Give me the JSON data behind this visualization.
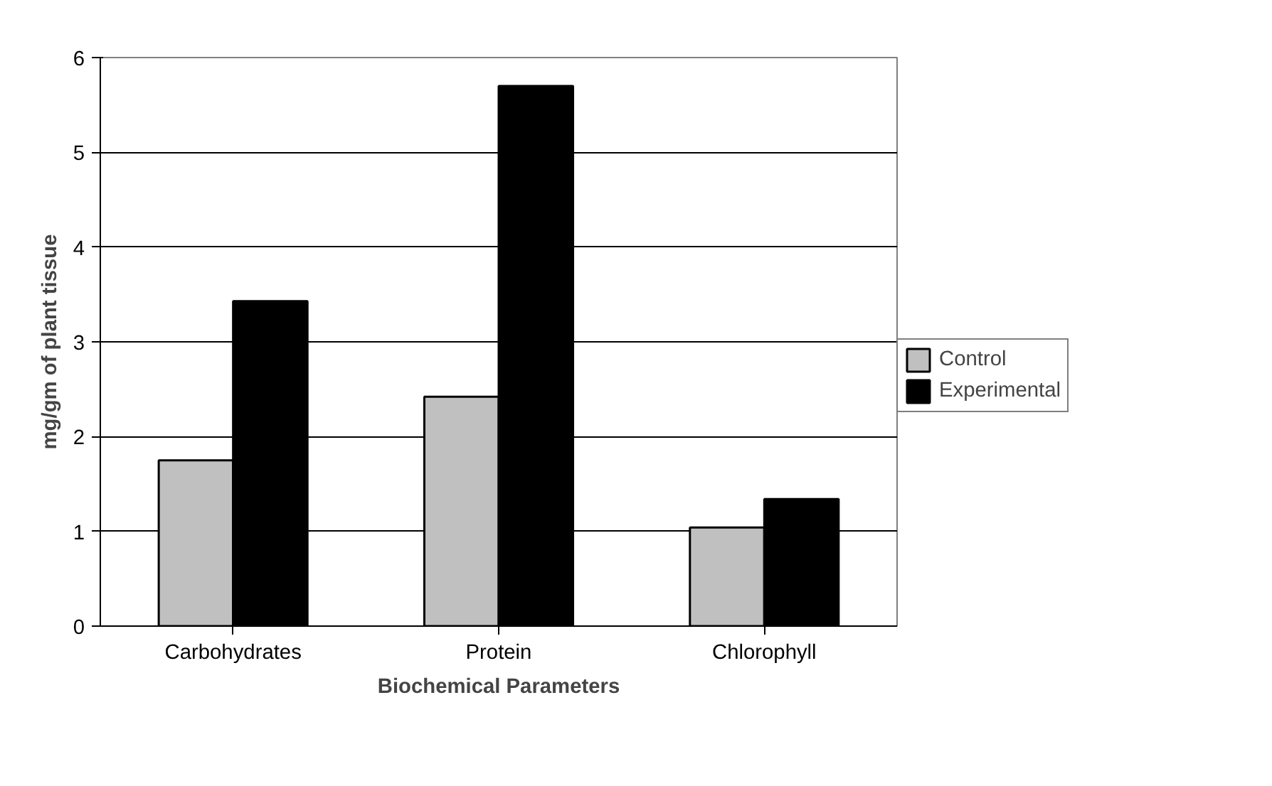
{
  "chart_data": {
    "type": "bar",
    "xlabel": "Biochemical Parameters",
    "ylabel": "mg/gm of plant tissue",
    "categories": [
      "Carbohydrates",
      "Protein",
      "Chlorophyll"
    ],
    "series": [
      {
        "name": "Control",
        "color": "#c0c0c0",
        "values": [
          1.75,
          2.42,
          1.04
        ]
      },
      {
        "name": "Experimental",
        "color": "#000000",
        "values": [
          3.43,
          5.7,
          1.34
        ]
      }
    ],
    "ylim": [
      0,
      6
    ],
    "yticks": [
      0,
      1,
      2,
      3,
      4,
      5,
      6
    ],
    "grid": "y",
    "legend": "right"
  }
}
